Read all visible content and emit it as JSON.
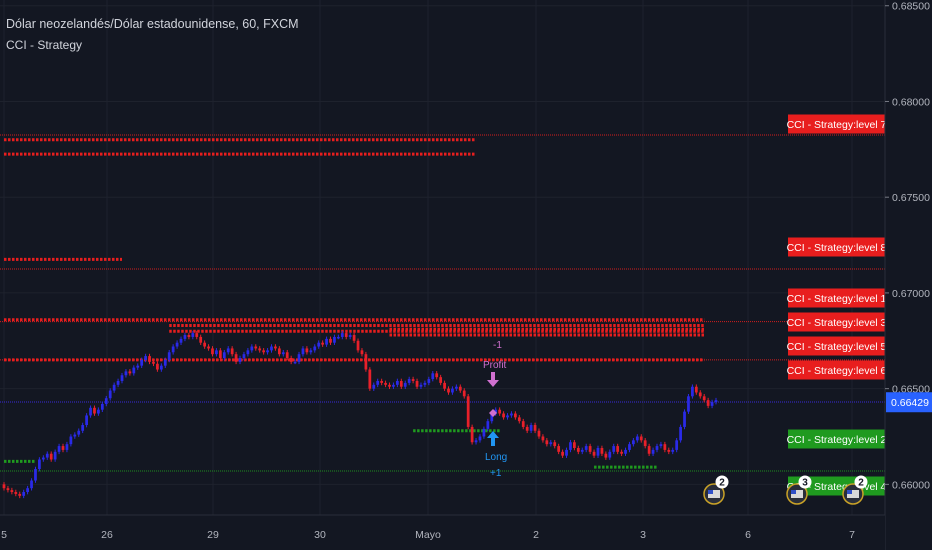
{
  "header": {
    "title": "Dólar neozelandés/Dólar estadounidense, 60, FXCM",
    "indicator": "CCI - Strategy"
  },
  "colors": {
    "background": "#131722",
    "up_candle": "#2a2ae8",
    "down_candle": "#e8202a",
    "resistance": "#e81e1e",
    "support": "#1f9a1f",
    "price_label": "#2962ff",
    "axis_text": "#b2b5be"
  },
  "chart_data": {
    "type": "candlestick",
    "ylim": [
      0.6584,
      0.6853
    ],
    "y_ticks": [
      "0.68500",
      "0.68000",
      "0.67500",
      "0.67000",
      "0.66500",
      "0.66000"
    ],
    "x_ticks": [
      "5",
      "26",
      "29",
      "30",
      "Mayo",
      "2",
      "3",
      "6",
      "7"
    ],
    "last_price": "0.66429",
    "bar_count": 178,
    "closes": [
      0.6598,
      0.6597,
      0.6596,
      0.6595,
      0.6594,
      0.6596,
      0.6598,
      0.6602,
      0.6608,
      0.6613,
      0.6614,
      0.6616,
      0.6613,
      0.6617,
      0.662,
      0.6618,
      0.6621,
      0.6625,
      0.6626,
      0.6628,
      0.6631,
      0.6636,
      0.664,
      0.6637,
      0.6639,
      0.6642,
      0.6645,
      0.6649,
      0.6652,
      0.6654,
      0.6657,
      0.6659,
      0.6658,
      0.6661,
      0.6662,
      0.6665,
      0.6667,
      0.6664,
      0.6663,
      0.666,
      0.6662,
      0.6665,
      0.6669,
      0.6672,
      0.6674,
      0.6676,
      0.6678,
      0.6677,
      0.6679,
      0.6677,
      0.6674,
      0.6672,
      0.6671,
      0.6668,
      0.667,
      0.6666,
      0.6669,
      0.6671,
      0.6668,
      0.6664,
      0.6666,
      0.6668,
      0.667,
      0.6672,
      0.6671,
      0.667,
      0.6669,
      0.667,
      0.6672,
      0.6671,
      0.6668,
      0.6669,
      0.6666,
      0.6664,
      0.6664,
      0.6668,
      0.6671,
      0.6669,
      0.667,
      0.6672,
      0.6674,
      0.6673,
      0.6676,
      0.6674,
      0.6677,
      0.6677,
      0.6679,
      0.6677,
      0.6678,
      0.6675,
      0.667,
      0.6668,
      0.666,
      0.665,
      0.6652,
      0.6654,
      0.6653,
      0.6652,
      0.6651,
      0.6652,
      0.6654,
      0.6651,
      0.6653,
      0.6655,
      0.6654,
      0.6651,
      0.6652,
      0.6653,
      0.6655,
      0.6658,
      0.6656,
      0.6653,
      0.665,
      0.6648,
      0.665,
      0.6651,
      0.6649,
      0.6646,
      0.663,
      0.6622,
      0.6623,
      0.6625,
      0.6629,
      0.6633,
      0.6637,
      0.6639,
      0.6637,
      0.6635,
      0.6636,
      0.6637,
      0.6635,
      0.6633,
      0.663,
      0.6628,
      0.6631,
      0.6628,
      0.6625,
      0.6623,
      0.6621,
      0.6622,
      0.662,
      0.6617,
      0.6615,
      0.6618,
      0.6622,
      0.6619,
      0.6617,
      0.6618,
      0.662,
      0.6617,
      0.6615,
      0.6619,
      0.6616,
      0.6614,
      0.6617,
      0.662,
      0.6617,
      0.6616,
      0.6618,
      0.6621,
      0.6623,
      0.6625,
      0.6623,
      0.662,
      0.6616,
      0.6618,
      0.662,
      0.6621,
      0.6618,
      0.6617,
      0.6618,
      0.6623,
      0.663,
      0.6638,
      0.6646,
      0.6651,
      0.6648,
      0.6646,
      0.6644,
      0.6641,
      0.6643,
      0.6644
    ],
    "levels": [
      {
        "label": "CCI - Strategy:level 7",
        "value": 0.67825,
        "color": "#e81e1e",
        "dotted_row": 0.678,
        "dotted_from": 0,
        "dotted_to": 120
      },
      {
        "label": "CCI - Strategy:level 8",
        "value": 0.67125,
        "color": "#e81e1e",
        "dotted_row": 0.67175,
        "dotted_from": 0,
        "dotted_to": 30
      },
      {
        "label": "CCI - Strategy:level 1",
        "value": 0.6685,
        "color": "#e81e1e",
        "dotted_row": 0.6683,
        "dotted_from": 42,
        "dotted_to": 178
      },
      {
        "label": "CCI - Strategy:level 3",
        "value": 0.6665,
        "color": "#e81e1e",
        "dotted_row": 0.6665,
        "dotted_from": 0,
        "dotted_to": 178
      },
      {
        "label": "CCI - Strategy:level 5",
        "value": 0.6643,
        "color": "#e81e1e",
        "dotted_row": 0.6681,
        "dotted_from": 98,
        "dotted_to": 178
      },
      {
        "label": "CCI - Strategy:level 6",
        "value": 0.6643,
        "color": "#2a2ae8",
        "dotted_row": 0.6686,
        "dotted_from": 0,
        "dotted_to": 178
      },
      {
        "label": "CCI - Strategy:level 2",
        "value": 0.6607,
        "color": "#1f9a1f",
        "dotted_row": 0.6628,
        "dotted_from": 104,
        "dotted_to": 126
      },
      {
        "label": "CCI - Strategy:level 4",
        "value": 0.6578,
        "color": "#1f9a1f",
        "dotted_row": 0.6578,
        "dotted_from": 0,
        "dotted_to": 178
      }
    ],
    "annotations": [
      {
        "text": "-1",
        "kind": "exit"
      },
      {
        "text": "Profit",
        "kind": "exit"
      },
      {
        "text": "Long",
        "kind": "entry"
      },
      {
        "text": "+1",
        "kind": "entry"
      }
    ],
    "events": [
      "2",
      "3",
      "2"
    ]
  }
}
